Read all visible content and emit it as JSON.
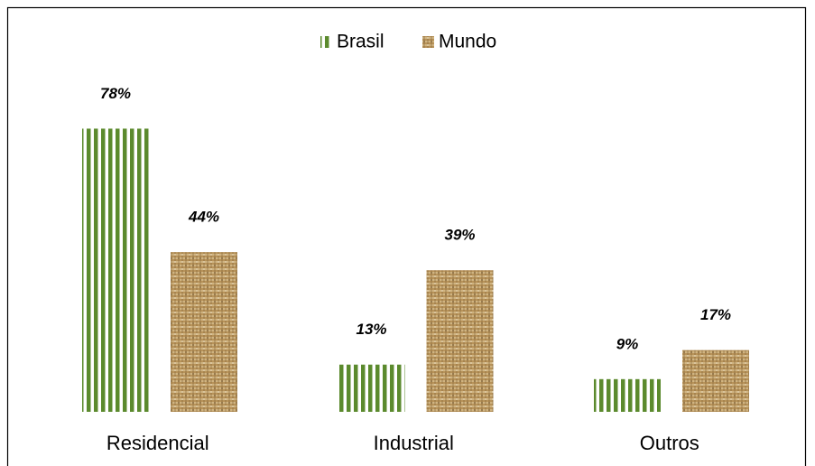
{
  "chart_data": {
    "type": "bar",
    "categories": [
      "Residencial",
      "Industrial",
      "Outros"
    ],
    "series": [
      {
        "name": "Brasil",
        "color": "#5b8a2d",
        "values": [
          78,
          13,
          9
        ],
        "value_labels": [
          "78%",
          "13%",
          "9%"
        ]
      },
      {
        "name": "Mundo",
        "color": "#b8935a",
        "values": [
          44,
          39,
          17
        ],
        "value_labels": [
          "44%",
          "39%",
          "17%"
        ]
      }
    ],
    "legend": "top"
  }
}
